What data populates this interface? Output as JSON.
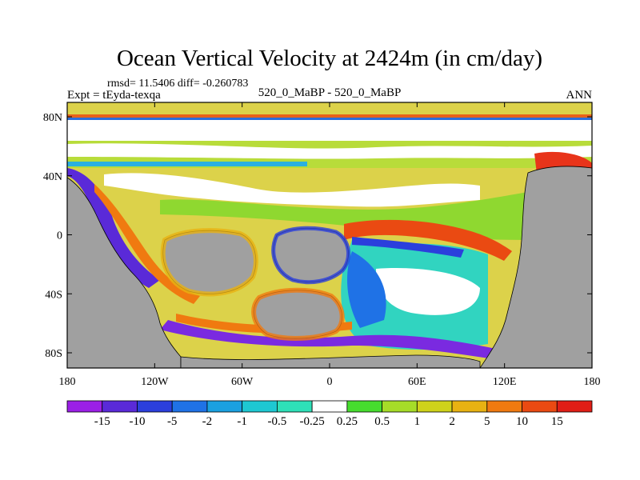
{
  "chart_data": {
    "type": "heatmap",
    "title": "Ocean Vertical Velocity at 2424m (in cm/day)",
    "stats_text": "rmsd= 11.5406 diff= -0.260783",
    "experiment_label": "Expt = tEyda-texqa",
    "center_label": "520_0_MaBP - 520_0_MaBP",
    "season_label": "ANN",
    "projection": "cylindrical equidistant",
    "x_axis": {
      "ticks": [
        "180",
        "120W",
        "60W",
        "0",
        "60E",
        "120E",
        "180"
      ],
      "range": [
        -180,
        180
      ]
    },
    "y_axis": {
      "ticks": [
        "80N",
        "40N",
        "0",
        "40S",
        "80S"
      ],
      "range": [
        -90,
        90
      ]
    },
    "land_color": "#a0a0a0",
    "colorbar": {
      "labels": [
        "-15",
        "-10",
        "-5",
        "-2",
        "-1",
        "-0.5",
        "-0.25",
        "0.25",
        "0.5",
        "1",
        "2",
        "5",
        "10",
        "15"
      ],
      "colors": [
        "#9b1fe6",
        "#5a2ad8",
        "#2b3fdc",
        "#1f72e6",
        "#1aa0e0",
        "#1ec8d2",
        "#2ee0b8",
        "#ffffff",
        "#46dc2e",
        "#a6dc28",
        "#cfd21a",
        "#e8b212",
        "#f07a10",
        "#ea4a12",
        "#e01e16"
      ]
    }
  }
}
